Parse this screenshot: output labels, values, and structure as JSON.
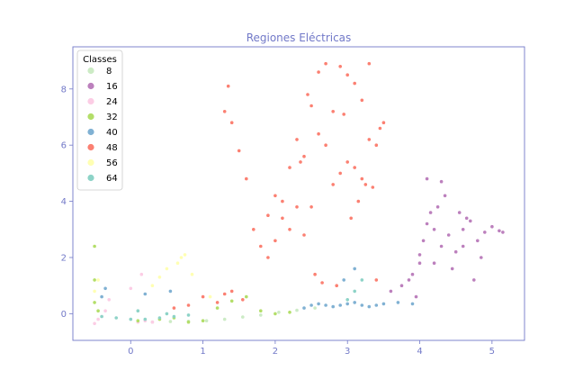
{
  "chart_data": {
    "type": "scatter",
    "title": "Regiones Eléctricas",
    "xlabel": "",
    "ylabel": "",
    "xlim": [
      -0.8,
      5.45
    ],
    "ylim": [
      -0.95,
      9.5
    ],
    "xticks": [
      0,
      1,
      2,
      3,
      4,
      5
    ],
    "yticks": [
      0,
      2,
      4,
      6,
      8
    ],
    "grid": false,
    "legend": {
      "title": "Classes",
      "position": "top-left"
    },
    "series": [
      {
        "name": "8",
        "color": "#ccebc5",
        "x": [
          0.3,
          0.55,
          0.8,
          1.05,
          1.3,
          1.55,
          1.8,
          2.05,
          2.3,
          2.55
        ],
        "y": [
          -0.3,
          -0.28,
          -0.27,
          -0.25,
          -0.2,
          -0.12,
          -0.05,
          0.05,
          0.12,
          0.2
        ]
      },
      {
        "name": "16",
        "color": "#bc80bd",
        "x": [
          3.6,
          3.75,
          3.9,
          4.0,
          4.05,
          4.1,
          4.15,
          4.2,
          4.25,
          4.3,
          4.4,
          4.5,
          4.6,
          4.7,
          4.8,
          4.9,
          5.0,
          5.1,
          4.1,
          4.3,
          4.55,
          4.75,
          4.0,
          4.2,
          3.95,
          4.6,
          4.85,
          5.15,
          4.35,
          4.65,
          3.85,
          4.45
        ],
        "y": [
          0.8,
          1.0,
          1.4,
          1.8,
          2.6,
          3.2,
          3.6,
          3.0,
          3.8,
          2.4,
          2.8,
          2.2,
          3.0,
          3.3,
          2.6,
          2.9,
          3.1,
          2.95,
          4.8,
          4.7,
          3.6,
          1.2,
          2.1,
          1.8,
          0.6,
          2.4,
          2.0,
          2.9,
          4.2,
          3.4,
          1.2,
          1.6
        ]
      },
      {
        "name": "24",
        "color": "#fccde5",
        "x": [
          -0.5,
          -0.45,
          -0.4,
          -0.35,
          0.1,
          0.2,
          0.3,
          -0.3,
          0.0,
          0.15
        ],
        "y": [
          -0.35,
          -0.2,
          -0.1,
          0.1,
          -0.3,
          -0.25,
          -0.3,
          0.5,
          0.9,
          1.4
        ]
      },
      {
        "name": "32",
        "color": "#b3de69",
        "x": [
          -0.5,
          -0.5,
          -0.5,
          -0.45,
          0.1,
          0.4,
          0.6,
          0.8,
          1.0,
          1.2,
          1.4,
          1.6,
          1.8,
          2.0,
          2.2
        ],
        "y": [
          0.4,
          1.2,
          2.4,
          0.1,
          -0.25,
          -0.2,
          -0.15,
          -0.3,
          -0.25,
          0.2,
          0.45,
          0.6,
          0.1,
          0.0,
          0.05
        ]
      },
      {
        "name": "40",
        "color": "#80b1d3",
        "x": [
          2.4,
          2.5,
          2.6,
          2.7,
          2.8,
          2.9,
          3.0,
          3.1,
          3.2,
          3.3,
          3.4,
          3.5,
          3.7,
          3.9,
          -0.4,
          -0.35,
          0.2,
          0.55,
          3.1,
          2.95
        ],
        "y": [
          0.2,
          0.3,
          0.35,
          0.3,
          0.25,
          0.3,
          0.35,
          0.4,
          0.3,
          0.25,
          0.3,
          0.35,
          0.4,
          0.35,
          0.6,
          0.9,
          0.7,
          0.8,
          1.6,
          1.2
        ]
      },
      {
        "name": "48",
        "color": "#fb8072",
        "x": [
          1.3,
          1.35,
          1.4,
          1.5,
          1.6,
          1.7,
          1.8,
          1.9,
          2.0,
          2.1,
          2.2,
          2.3,
          2.4,
          2.5,
          2.6,
          2.7,
          2.8,
          2.9,
          3.0,
          3.1,
          3.2,
          3.3,
          3.4,
          3.5,
          2.8,
          2.9,
          3.0,
          3.1,
          3.2,
          3.3,
          2.5,
          2.4,
          2.3,
          2.2,
          2.1,
          2.0,
          1.9,
          1.3,
          1.4,
          1.55,
          2.6,
          2.7,
          3.05,
          3.15,
          3.25,
          3.45,
          2.45,
          2.35,
          2.95,
          3.35,
          0.6,
          0.8,
          1.0,
          1.2,
          2.55,
          2.65,
          2.85,
          3.4
        ],
        "y": [
          7.2,
          8.1,
          6.8,
          5.8,
          4.8,
          3.0,
          2.4,
          2.0,
          4.2,
          3.4,
          3.0,
          6.2,
          5.6,
          7.4,
          8.6,
          8.9,
          7.2,
          8.8,
          8.5,
          8.2,
          7.6,
          8.9,
          6.0,
          6.8,
          4.6,
          5.0,
          5.4,
          5.2,
          4.8,
          6.2,
          3.8,
          2.8,
          3.8,
          5.2,
          4.0,
          2.6,
          3.5,
          0.7,
          0.8,
          0.5,
          6.4,
          6.0,
          3.4,
          4.0,
          4.6,
          6.6,
          7.8,
          5.4,
          7.1,
          4.5,
          0.2,
          0.3,
          0.6,
          0.4,
          1.4,
          1.1,
          1.0,
          1.2
        ]
      },
      {
        "name": "56",
        "color": "#ffffb3",
        "x": [
          -0.5,
          -0.45,
          0.5,
          0.65,
          0.75,
          0.85,
          1.1,
          0.3,
          0.4,
          0.7
        ],
        "y": [
          0.8,
          1.2,
          1.6,
          1.8,
          2.1,
          1.4,
          0.6,
          1.0,
          1.3,
          2.0
        ]
      },
      {
        "name": "64",
        "color": "#8dd3c7",
        "x": [
          -0.4,
          -0.2,
          0.0,
          0.2,
          0.4,
          0.6,
          0.8,
          3.0,
          3.1,
          3.2,
          0.1,
          0.5
        ],
        "y": [
          -0.1,
          -0.15,
          -0.2,
          -0.2,
          -0.15,
          -0.1,
          -0.05,
          0.5,
          0.8,
          1.2,
          0.1,
          0.0
        ]
      }
    ]
  }
}
